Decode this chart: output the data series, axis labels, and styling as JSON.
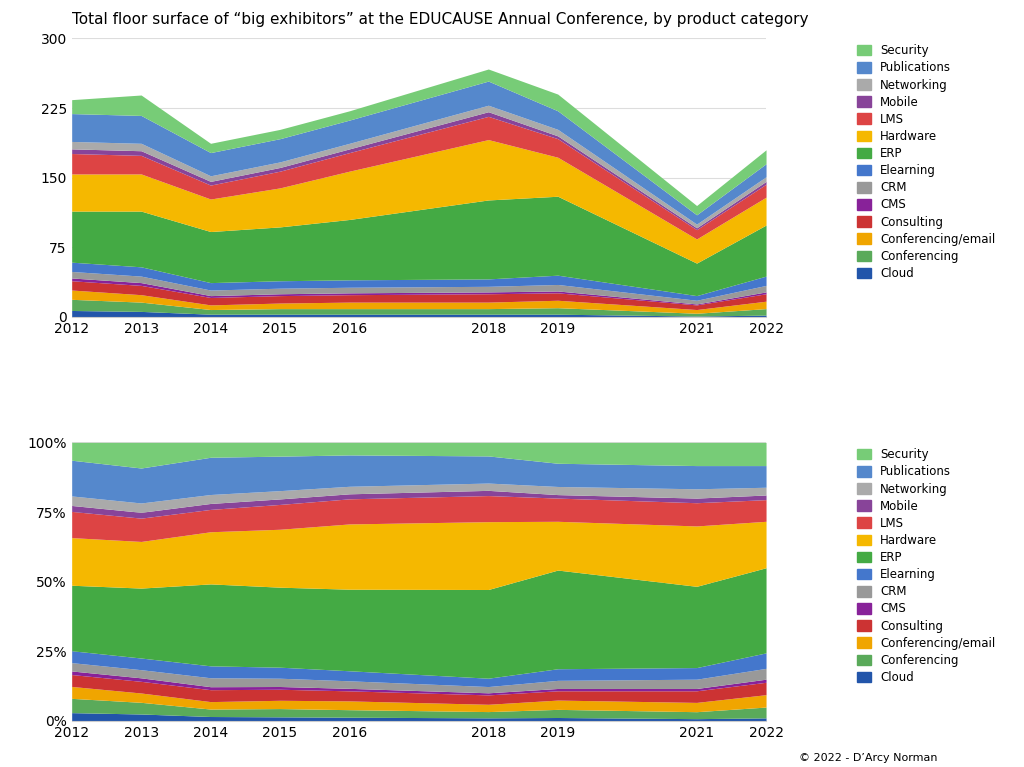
{
  "title": "Total floor surface of “big exhibitors” at the EDUCAUSE Annual Conference, by product category",
  "years": [
    2012,
    2013,
    2014,
    2015,
    2016,
    2018,
    2019,
    2021,
    2022
  ],
  "stack_order": [
    "Cloud",
    "Conferencing",
    "Conferencing/email",
    "Consulting",
    "CMS",
    "CRM",
    "Elearning",
    "ERP",
    "Hardware",
    "LMS",
    "Mobile",
    "Networking",
    "Publications",
    "Security"
  ],
  "colors_map": {
    "Cloud": "#2255aa",
    "Conferencing": "#5aaa5a",
    "Conferencing/email": "#f5a800",
    "Consulting": "#cc3333",
    "CMS": "#882299",
    "CRM": "#999999",
    "Elearning": "#4477cc",
    "ERP": "#44aa44",
    "Hardware": "#f5a800",
    "LMS": "#dd4444",
    "Mobile": "#884499",
    "Networking": "#aaaaaa",
    "Publications": "#5588cc",
    "Security": "#77cc77"
  },
  "raw_data": {
    "Cloud": [
      7,
      6,
      3,
      3,
      3,
      3,
      3,
      1,
      2
    ],
    "Conferencing": [
      12,
      10,
      5,
      6,
      6,
      6,
      7,
      3,
      7
    ],
    "Conferencing/email": [
      10,
      8,
      5,
      6,
      7,
      7,
      8,
      4,
      8
    ],
    "Consulting": [
      10,
      10,
      8,
      8,
      8,
      9,
      8,
      5,
      8
    ],
    "CMS": [
      3,
      3,
      2,
      2,
      2,
      2,
      2,
      1,
      2
    ],
    "CRM": [
      7,
      7,
      6,
      6,
      6,
      6,
      7,
      4,
      7
    ],
    "Elearning": [
      10,
      10,
      8,
      8,
      8,
      8,
      10,
      5,
      10
    ],
    "ERP": [
      55,
      60,
      55,
      58,
      65,
      85,
      85,
      35,
      55
    ],
    "Hardware": [
      40,
      40,
      35,
      42,
      52,
      65,
      42,
      26,
      30
    ],
    "LMS": [
      22,
      20,
      15,
      18,
      20,
      25,
      20,
      10,
      14
    ],
    "Mobile": [
      5,
      5,
      4,
      4,
      4,
      5,
      3,
      2,
      3
    ],
    "Networking": [
      8,
      8,
      6,
      6,
      6,
      7,
      7,
      4,
      5
    ],
    "Publications": [
      30,
      30,
      25,
      25,
      25,
      26,
      20,
      10,
      14
    ],
    "Security": [
      15,
      22,
      10,
      10,
      10,
      13,
      18,
      10,
      15
    ]
  },
  "legend_order": [
    "Security",
    "Publications",
    "Networking",
    "Mobile",
    "LMS",
    "Hardware",
    "ERP",
    "Elearning",
    "CRM",
    "CMS",
    "Consulting",
    "Conferencing/email",
    "Conferencing",
    "Cloud"
  ],
  "ylim_abs": [
    0,
    300
  ],
  "yticks_abs": [
    0,
    75,
    150,
    225,
    300
  ],
  "ytick_labels_abs": [
    "0",
    "75",
    "150",
    "225",
    "300"
  ],
  "ylim_pct": [
    0,
    100
  ],
  "yticks_pct": [
    0,
    25,
    50,
    75,
    100
  ],
  "ytick_labels_pct": [
    "0%",
    "25%",
    "50%",
    "75%",
    "100%"
  ],
  "background_color": "#ffffff",
  "grid_color": "#dddddd",
  "copyright": "© 2022 - D’Arcy Norman"
}
